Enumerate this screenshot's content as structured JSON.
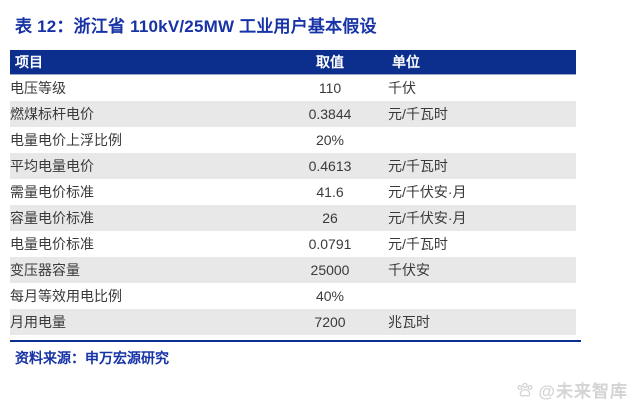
{
  "title": "表 12：浙江省 110kV/25MW 工业用户基本假设",
  "table": {
    "headers": [
      "项目",
      "取值",
      "单位"
    ],
    "rows": [
      {
        "item": "电压等级",
        "value": "110",
        "unit": "千伏"
      },
      {
        "item": "燃煤标杆电价",
        "value": "0.3844",
        "unit": "元/千瓦时"
      },
      {
        "item": "电量电价上浮比例",
        "value": "20%",
        "unit": ""
      },
      {
        "item": "平均电量电价",
        "value": "0.4613",
        "unit": "元/千瓦时"
      },
      {
        "item": "需量电价标准",
        "value": "41.6",
        "unit": "元/千伏安·月"
      },
      {
        "item": "容量电价标准",
        "value": "26",
        "unit": "元/千伏安·月"
      },
      {
        "item": "电量电价标准",
        "value": "0.0791",
        "unit": "元/千瓦时"
      },
      {
        "item": "变压器容量",
        "value": "25000",
        "unit": "千伏安"
      },
      {
        "item": "每月等效用电比例",
        "value": "40%",
        "unit": ""
      },
      {
        "item": "月用电量",
        "value": "7200",
        "unit": "兆瓦时"
      }
    ]
  },
  "source": "资料来源：申万宏源研究",
  "watermark": "@未来智库",
  "colors": {
    "header_bg": "#0C2F8E",
    "accent_blue": "#1733A6",
    "row_alt_bg": "#E8E8E8",
    "watermark_gray": "#D4D4D4"
  },
  "chart_data": {
    "type": "table",
    "title": "表 12：浙江省 110kV/25MW 工业用户基本假设",
    "columns": [
      "项目",
      "取值",
      "单位"
    ],
    "rows": [
      [
        "电压等级",
        "110",
        "千伏"
      ],
      [
        "燃煤标杆电价",
        "0.3844",
        "元/千瓦时"
      ],
      [
        "电量电价上浮比例",
        "20%",
        ""
      ],
      [
        "平均电量电价",
        "0.4613",
        "元/千瓦时"
      ],
      [
        "需量电价标准",
        "41.6",
        "元/千伏安·月"
      ],
      [
        "容量电价标准",
        "26",
        "元/千伏安·月"
      ],
      [
        "电量电价标准",
        "0.0791",
        "元/千瓦时"
      ],
      [
        "变压器容量",
        "25000",
        "千伏安"
      ],
      [
        "每月等效用电比例",
        "40%",
        ""
      ],
      [
        "月用电量",
        "7200",
        "兆瓦时"
      ]
    ]
  }
}
